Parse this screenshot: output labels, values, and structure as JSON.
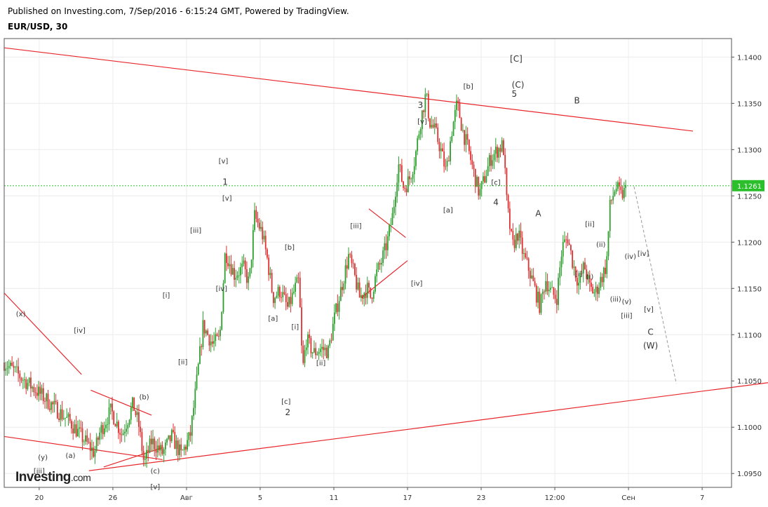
{
  "header": {
    "published": "Published on Investing.com, 7/Sep/2016 - 6:15:24 GMT, Powered by TradingView.",
    "symbol": "EUR/USD, 30"
  },
  "logo": {
    "brand": "Investing",
    "tld": ".com"
  },
  "colors": {
    "up": "#2e9e2e",
    "down": "#e03030",
    "trendline": "#e8262b",
    "current_price_line": "#2bbf2b",
    "current_price_badge": "#2bbf2b",
    "projection": "#999999",
    "grid": "#ececec",
    "axis": "#555555"
  },
  "chart_data": {
    "type": "candlestick",
    "title": "EUR/USD, 30",
    "y_ticks": [
      "1.0950",
      "1.1000",
      "1.1050",
      "1.1100",
      "1.1150",
      "1.1200",
      "1.1250",
      "1.1300",
      "1.1350",
      "1.1400"
    ],
    "x_ticks": [
      "20",
      "26",
      "Авг",
      "5",
      "11",
      "17",
      "23",
      "12:00",
      "Сен",
      "7",
      "11"
    ],
    "ylim": [
      1.0935,
      1.142
    ],
    "current_price": "1.1261",
    "grid": true,
    "price_path": [
      [
        0,
        1.107
      ],
      [
        2.0,
        1.1035
      ],
      [
        3.6,
        1.1005
      ],
      [
        4.9,
        1.0972
      ],
      [
        5.2,
        1.0995
      ],
      [
        5.8,
        1.1018
      ],
      [
        6.4,
        1.0992
      ],
      [
        7.0,
        1.1025
      ],
      [
        7.3,
        1.1003
      ],
      [
        7.6,
        1.096
      ],
      [
        8.0,
        1.0985
      ],
      [
        8.6,
        1.0972
      ],
      [
        9.1,
        1.099
      ],
      [
        9.6,
        1.097
      ],
      [
        10.1,
        1.099
      ],
      [
        10.4,
        1.104
      ],
      [
        10.8,
        1.111
      ],
      [
        11.3,
        1.109
      ],
      [
        11.7,
        1.1095
      ],
      [
        12.0,
        1.119
      ],
      [
        12.5,
        1.1165
      ],
      [
        13.0,
        1.1172
      ],
      [
        13.3,
        1.1155
      ],
      [
        13.6,
        1.1228
      ],
      [
        14.0,
        1.121
      ],
      [
        14.3,
        1.118
      ],
      [
        14.6,
        1.114
      ],
      [
        15.0,
        1.1148
      ],
      [
        15.4,
        1.1128
      ],
      [
        15.8,
        1.115
      ],
      [
        16.0,
        1.1158
      ],
      [
        16.2,
        1.106
      ],
      [
        16.4,
        1.1095
      ],
      [
        16.8,
        1.108
      ],
      [
        17.2,
        1.1085
      ],
      [
        17.6,
        1.1082
      ],
      [
        17.9,
        1.1115
      ],
      [
        18.3,
        1.115
      ],
      [
        18.7,
        1.1185
      ],
      [
        19.0,
        1.1165
      ],
      [
        19.3,
        1.114
      ],
      [
        19.7,
        1.115
      ],
      [
        19.9,
        1.114
      ],
      [
        20.2,
        1.1165
      ],
      [
        20.5,
        1.118
      ],
      [
        20.8,
        1.12
      ],
      [
        21.1,
        1.123
      ],
      [
        21.4,
        1.1285
      ],
      [
        21.7,
        1.1258
      ],
      [
        22.0,
        1.1268
      ],
      [
        22.3,
        1.129
      ],
      [
        22.6,
        1.133
      ],
      [
        22.9,
        1.136
      ],
      [
        23.1,
        1.133
      ],
      [
        23.4,
        1.132
      ],
      [
        23.7,
        1.13
      ],
      [
        24.0,
        1.1275
      ],
      [
        24.3,
        1.132
      ],
      [
        24.6,
        1.135
      ],
      [
        24.9,
        1.132
      ],
      [
        25.2,
        1.13
      ],
      [
        25.5,
        1.1275
      ],
      [
        25.8,
        1.1252
      ],
      [
        26.1,
        1.127
      ],
      [
        26.4,
        1.129
      ],
      [
        26.8,
        1.13
      ],
      [
        27.1,
        1.1305
      ],
      [
        27.3,
        1.124
      ],
      [
        27.6,
        1.1195
      ],
      [
        27.9,
        1.121
      ],
      [
        28.2,
        1.1185
      ],
      [
        28.5,
        1.117
      ],
      [
        28.8,
        1.115
      ],
      [
        29.1,
        1.113
      ],
      [
        29.4,
        1.116
      ],
      [
        29.7,
        1.1145
      ],
      [
        30.0,
        1.114
      ],
      [
        30.3,
        1.1195
      ],
      [
        30.6,
        1.1205
      ],
      [
        30.9,
        1.1175
      ],
      [
        31.2,
        1.1155
      ],
      [
        31.5,
        1.1175
      ],
      [
        31.8,
        1.115
      ],
      [
        32.1,
        1.1145
      ],
      [
        32.4,
        1.116
      ],
      [
        32.7,
        1.1175
      ],
      [
        32.9,
        1.124
      ],
      [
        33.2,
        1.126
      ],
      [
        33.5,
        1.125
      ],
      [
        33.8,
        1.1258
      ]
    ],
    "x_domain": [
      0,
      37.4
    ],
    "x_tick_positions": [
      1.9,
      5.9,
      9.9,
      13.9,
      17.9,
      21.9,
      25.9,
      29.9,
      33.9,
      37.9,
      41.9
    ],
    "trendlines": [
      {
        "from": [
          0,
          1.141
        ],
        "to": [
          37.4,
          1.132
        ]
      },
      {
        "from": [
          0,
          1.099
        ],
        "to": [
          8.6,
          1.0965
        ]
      },
      {
        "from": [
          4.6,
          1.0953
        ],
        "to": [
          42.2,
          1.105
        ]
      },
      {
        "from": [
          0,
          1.1145
        ],
        "to": [
          4.2,
          1.1057
        ]
      },
      {
        "from": [
          4.7,
          1.104
        ],
        "to": [
          8.0,
          1.1013
        ]
      },
      {
        "from": [
          5.4,
          1.0957
        ],
        "to": [
          8.6,
          1.0978
        ]
      },
      {
        "from": [
          19.8,
          1.1236
        ],
        "to": [
          21.8,
          1.1205
        ]
      },
      {
        "from": [
          19.4,
          1.114
        ],
        "to": [
          21.9,
          1.118
        ]
      }
    ],
    "projection": {
      "from": [
        34.2,
        1.126
      ],
      "to": [
        36.5,
        1.1047
      ]
    },
    "wave_labels": [
      {
        "text": "(x)",
        "x": 0.9,
        "y": 1.112,
        "size": "small"
      },
      {
        "text": "[iv]",
        "x": 4.1,
        "y": 1.1102,
        "size": "small"
      },
      {
        "text": "(b)",
        "x": 7.6,
        "y": 1.103,
        "size": "small"
      },
      {
        "text": "(y)",
        "x": 2.1,
        "y": 1.0965,
        "size": "small"
      },
      {
        "text": "(a)",
        "x": 3.6,
        "y": 1.0967,
        "size": "small"
      },
      {
        "text": "[iii]",
        "x": 1.9,
        "y": 1.095,
        "size": "small"
      },
      {
        "text": "(c)",
        "x": 8.2,
        "y": 1.095,
        "size": "small"
      },
      {
        "text": "[v]",
        "x": 8.2,
        "y": 1.0933,
        "size": "small"
      },
      {
        "text": "[ii]",
        "x": 9.7,
        "y": 1.1068,
        "size": "small"
      },
      {
        "text": "[i]",
        "x": 8.8,
        "y": 1.114,
        "size": "small"
      },
      {
        "text": "[iii]",
        "x": 10.4,
        "y": 1.121,
        "size": "small"
      },
      {
        "text": "[iv]",
        "x": 11.8,
        "y": 1.1147,
        "size": "small"
      },
      {
        "text": "[v]",
        "x": 12.1,
        "y": 1.1245,
        "size": "small"
      },
      {
        "text": "1",
        "x": 12.0,
        "y": 1.1262,
        "size": "big"
      },
      {
        "text": "[v]",
        "x": 11.9,
        "y": 1.1285,
        "size": "small"
      },
      {
        "text": "[a]",
        "x": 14.6,
        "y": 1.1115,
        "size": "small"
      },
      {
        "text": "[b]",
        "x": 15.5,
        "y": 1.1192,
        "size": "small"
      },
      {
        "text": "[i]",
        "x": 15.8,
        "y": 1.1106,
        "size": "small"
      },
      {
        "text": "[ii]",
        "x": 17.2,
        "y": 1.1067,
        "size": "small"
      },
      {
        "text": "[c]",
        "x": 15.3,
        "y": 1.1025,
        "size": "small"
      },
      {
        "text": "2",
        "x": 15.4,
        "y": 1.1013,
        "size": "big"
      },
      {
        "text": "[iii]",
        "x": 19.1,
        "y": 1.1215,
        "size": "small"
      },
      {
        "text": "[iv]",
        "x": 22.4,
        "y": 1.1153,
        "size": "small"
      },
      {
        "text": "3",
        "x": 22.6,
        "y": 1.1345,
        "size": "big"
      },
      {
        "text": "[v]",
        "x": 22.7,
        "y": 1.1328,
        "size": "small"
      },
      {
        "text": "[a]",
        "x": 24.1,
        "y": 1.1232,
        "size": "small"
      },
      {
        "text": "[b]",
        "x": 25.2,
        "y": 1.1366,
        "size": "small"
      },
      {
        "text": "[c]",
        "x": 26.7,
        "y": 1.1262,
        "size": "small"
      },
      {
        "text": "4",
        "x": 26.7,
        "y": 1.124,
        "size": "big"
      },
      {
        "text": "[C]",
        "x": 27.8,
        "y": 1.1395,
        "size": "big"
      },
      {
        "text": "(C)",
        "x": 27.9,
        "y": 1.1367,
        "size": "big"
      },
      {
        "text": "5",
        "x": 27.7,
        "y": 1.1357,
        "size": "big"
      },
      {
        "text": "A",
        "x": 29.0,
        "y": 1.1228,
        "size": "big"
      },
      {
        "text": "B",
        "x": 31.1,
        "y": 1.135,
        "size": "big"
      },
      {
        "text": "[ii]",
        "x": 31.8,
        "y": 1.1217,
        "size": "small"
      },
      {
        "text": "(ii)",
        "x": 32.4,
        "y": 1.1195,
        "size": "small"
      },
      {
        "text": "[i]",
        "x": 31.2,
        "y": 1.1163,
        "size": "small"
      },
      {
        "text": "(i)",
        "x": 31.8,
        "y": 1.116,
        "size": "small"
      },
      {
        "text": "(iv)",
        "x": 34.0,
        "y": 1.1182,
        "size": "small"
      },
      {
        "text": "[iv]",
        "x": 34.7,
        "y": 1.1185,
        "size": "small"
      },
      {
        "text": "(iii)",
        "x": 33.2,
        "y": 1.1136,
        "size": "small"
      },
      {
        "text": "(v)",
        "x": 33.8,
        "y": 1.1133,
        "size": "small"
      },
      {
        "text": "[v]",
        "x": 35.0,
        "y": 1.1125,
        "size": "small"
      },
      {
        "text": "[iii]",
        "x": 33.8,
        "y": 1.1118,
        "size": "small"
      },
      {
        "text": "C",
        "x": 35.1,
        "y": 1.11,
        "size": "big"
      },
      {
        "text": "(W)",
        "x": 35.1,
        "y": 1.1085,
        "size": "big"
      }
    ]
  }
}
